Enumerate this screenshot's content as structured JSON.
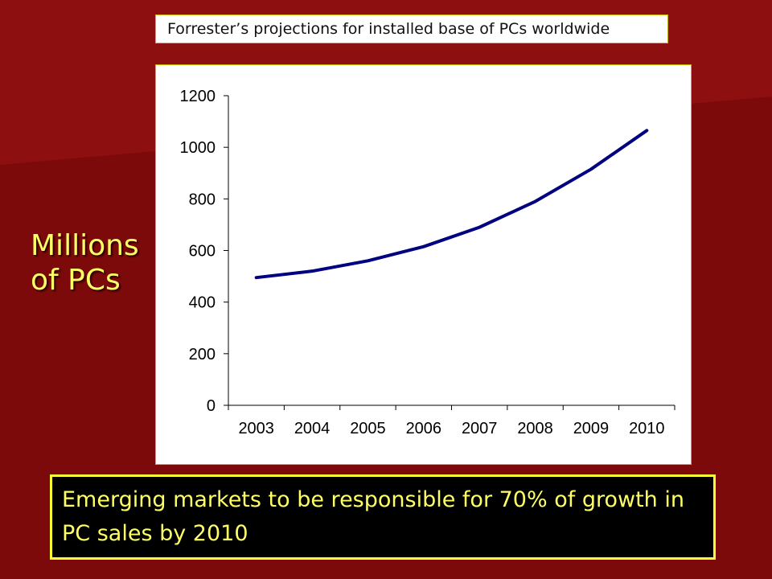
{
  "slide": {
    "title": "Forrester’s projections for installed base of PCs worldwide",
    "side_label": "Millions of PCs",
    "callout": "Emerging markets to be responsible for 70% of growth in PC sales by 2010"
  },
  "colors": {
    "background": "#7d0a0a",
    "line": "#000080",
    "accent_text": "#ffff66"
  },
  "chart_data": {
    "type": "line",
    "categories": [
      "2003",
      "2004",
      "2005",
      "2006",
      "2007",
      "2008",
      "2009",
      "2010"
    ],
    "series": [
      {
        "values": [
          495,
          520,
          560,
          615,
          690,
          790,
          915,
          1065
        ]
      }
    ],
    "ylim": [
      0,
      1200
    ],
    "yticks": [
      0,
      200,
      400,
      600,
      800,
      1000,
      1200
    ],
    "title": "",
    "xlabel": "",
    "ylabel": "",
    "grid": false,
    "legend": "none"
  }
}
